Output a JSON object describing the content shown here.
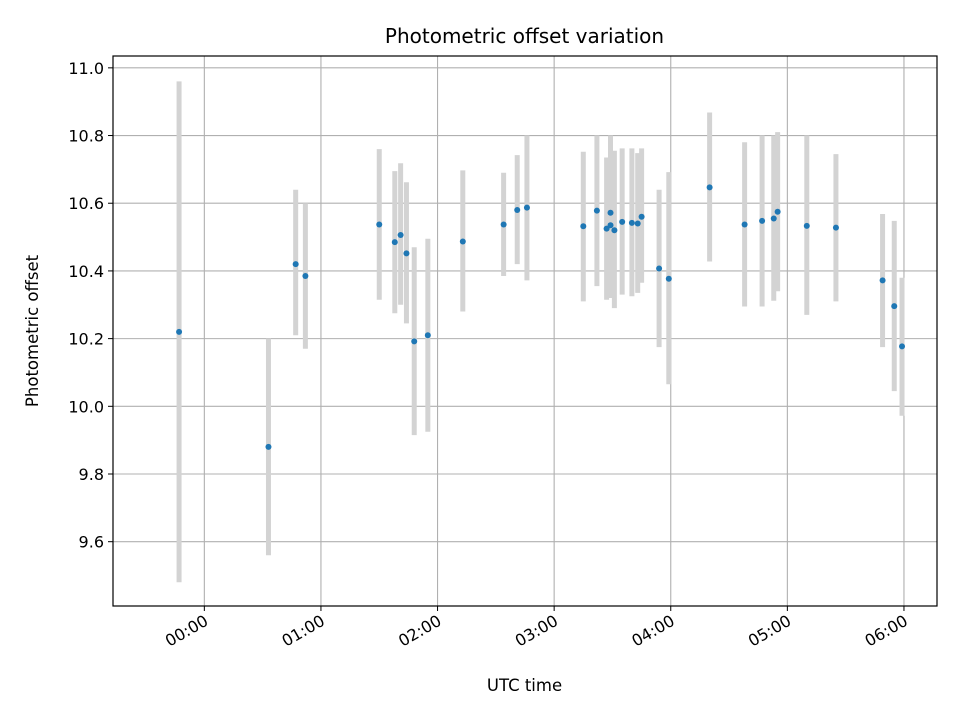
{
  "chart_data": {
    "type": "scatter",
    "title": "Photometric offset variation",
    "xlabel": "UTC time",
    "ylabel": "Photometric offset",
    "x_axis_kind": "time",
    "xlim": [
      "23:13",
      "06:17"
    ],
    "ylim": [
      9.41,
      11.035
    ],
    "x_ticks": [
      "00:00",
      "01:00",
      "02:00",
      "03:00",
      "04:00",
      "05:00",
      "06:00"
    ],
    "y_ticks": [
      9.6,
      9.8,
      10.0,
      10.2,
      10.4,
      10.6,
      10.8,
      11.0
    ],
    "y_tick_labels": [
      "9.6",
      "9.8",
      "10.0",
      "10.2",
      "10.4",
      "10.6",
      "10.8",
      "11.0"
    ],
    "grid": true,
    "colors": {
      "marker": "#1f77b4",
      "errorbar": "#d3d3d3",
      "grid": "#b0b0b0"
    },
    "points": [
      {
        "t": "23:47",
        "y": 10.22,
        "lo": 9.48,
        "hi": 10.96
      },
      {
        "t": "00:33",
        "y": 9.88,
        "lo": 9.56,
        "hi": 10.2
      },
      {
        "t": "00:47",
        "y": 10.42,
        "lo": 10.21,
        "hi": 10.64
      },
      {
        "t": "00:52",
        "y": 10.385,
        "lo": 10.17,
        "hi": 10.6
      },
      {
        "t": "01:30",
        "y": 10.537,
        "lo": 10.315,
        "hi": 10.76
      },
      {
        "t": "01:38",
        "y": 10.485,
        "lo": 10.275,
        "hi": 10.695
      },
      {
        "t": "01:41",
        "y": 10.506,
        "lo": 10.3,
        "hi": 10.718
      },
      {
        "t": "01:44",
        "y": 10.452,
        "lo": 10.245,
        "hi": 10.662
      },
      {
        "t": "01:48",
        "y": 10.192,
        "lo": 9.915,
        "hi": 10.47
      },
      {
        "t": "01:55",
        "y": 10.21,
        "lo": 9.925,
        "hi": 10.495
      },
      {
        "t": "02:13",
        "y": 10.487,
        "lo": 10.28,
        "hi": 10.697
      },
      {
        "t": "02:34",
        "y": 10.537,
        "lo": 10.385,
        "hi": 10.69
      },
      {
        "t": "02:41",
        "y": 10.58,
        "lo": 10.42,
        "hi": 10.742
      },
      {
        "t": "02:46",
        "y": 10.587,
        "lo": 10.372,
        "hi": 10.8
      },
      {
        "t": "03:15",
        "y": 10.532,
        "lo": 10.31,
        "hi": 10.752
      },
      {
        "t": "03:22",
        "y": 10.578,
        "lo": 10.355,
        "hi": 10.8
      },
      {
        "t": "03:27",
        "y": 10.525,
        "lo": 10.315,
        "hi": 10.735
      },
      {
        "t": "03:29",
        "y": 10.572,
        "lo": 10.345,
        "hi": 10.8
      },
      {
        "t": "03:29",
        "y": 10.535,
        "lo": 10.32,
        "hi": 10.75
      },
      {
        "t": "03:31",
        "y": 10.52,
        "lo": 10.29,
        "hi": 10.755
      },
      {
        "t": "03:35",
        "y": 10.545,
        "lo": 10.33,
        "hi": 10.762
      },
      {
        "t": "03:40",
        "y": 10.542,
        "lo": 10.325,
        "hi": 10.762
      },
      {
        "t": "03:43",
        "y": 10.54,
        "lo": 10.335,
        "hi": 10.748
      },
      {
        "t": "03:45",
        "y": 10.56,
        "lo": 10.365,
        "hi": 10.762
      },
      {
        "t": "03:54",
        "y": 10.407,
        "lo": 10.175,
        "hi": 10.64
      },
      {
        "t": "03:59",
        "y": 10.377,
        "lo": 10.065,
        "hi": 10.692
      },
      {
        "t": "04:20",
        "y": 10.647,
        "lo": 10.428,
        "hi": 10.868
      },
      {
        "t": "04:38",
        "y": 10.537,
        "lo": 10.295,
        "hi": 10.78
      },
      {
        "t": "04:47",
        "y": 10.548,
        "lo": 10.295,
        "hi": 10.8
      },
      {
        "t": "04:53",
        "y": 10.555,
        "lo": 10.312,
        "hi": 10.8
      },
      {
        "t": "04:55",
        "y": 10.575,
        "lo": 10.34,
        "hi": 10.81
      },
      {
        "t": "05:10",
        "y": 10.533,
        "lo": 10.27,
        "hi": 10.8
      },
      {
        "t": "05:25",
        "y": 10.528,
        "lo": 10.31,
        "hi": 10.745
      },
      {
        "t": "05:49",
        "y": 10.372,
        "lo": 10.175,
        "hi": 10.568
      },
      {
        "t": "05:55",
        "y": 10.296,
        "lo": 10.045,
        "hi": 10.548
      },
      {
        "t": "05:59",
        "y": 10.177,
        "lo": 9.972,
        "hi": 10.38
      }
    ]
  }
}
